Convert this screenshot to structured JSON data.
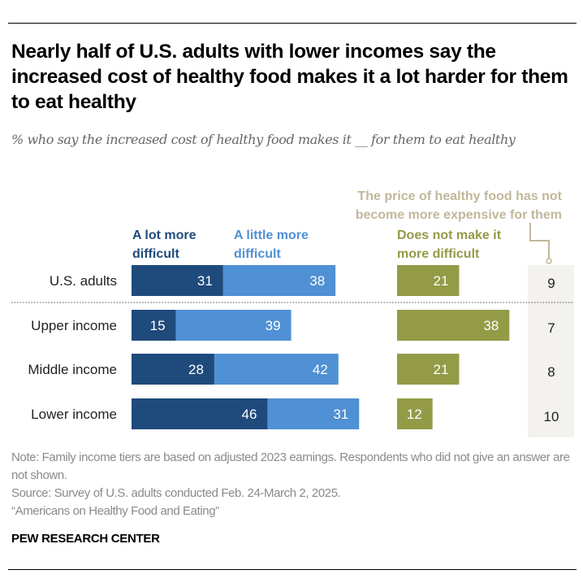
{
  "header": {
    "title": "Nearly half of U.S. adults with lower incomes say the increased cost of healthy food makes it a lot harder for them to eat healthy",
    "subtitle": "% who say the increased cost of healthy food makes it __ for them to eat healthy"
  },
  "legend": {
    "a_lot": "A lot more difficult",
    "a_little": "A little more difficult",
    "not_more": "Does not make it more difficult",
    "price_not": "The price of healthy food has not become more expensive for them"
  },
  "colors": {
    "a_lot": "#1f4a7c",
    "a_little": "#5090d4",
    "not_more": "#939b47",
    "price_not_bg": "#f3f2ee",
    "price_not_text": "#c0b89a"
  },
  "chart_data": {
    "type": "bar",
    "title": "Nearly half of U.S. adults with lower incomes say the increased cost of healthy food makes it a lot harder for them to eat healthy",
    "subtitle": "% who say the increased cost of healthy food makes it __ for them to eat healthy",
    "orientation": "horizontal",
    "stacked": true,
    "categories": [
      "U.S. adults",
      "Upper income",
      "Middle income",
      "Lower income"
    ],
    "series": [
      {
        "name": "A lot more difficult",
        "values": [
          31,
          15,
          28,
          46
        ]
      },
      {
        "name": "A little more difficult",
        "values": [
          38,
          39,
          42,
          31
        ]
      },
      {
        "name": "Does not make it more difficult",
        "values": [
          21,
          38,
          21,
          12
        ]
      },
      {
        "name": "The price of healthy food has not become more expensive for them",
        "values": [
          9,
          7,
          8,
          10
        ]
      }
    ],
    "xlabel": "",
    "ylabel": "",
    "grid": false,
    "legend": "top",
    "divider_after_category": "U.S. adults"
  },
  "footer": {
    "note": "Note: Family income tiers are based on adjusted 2023 earnings. Respondents who did not give an answer are not shown.",
    "source": "Source: Survey of U.S. adults conducted Feb. 24-March 2, 2025.",
    "report": "“Americans on Healthy Food and Eating”",
    "brand": "PEW RESEARCH CENTER"
  }
}
